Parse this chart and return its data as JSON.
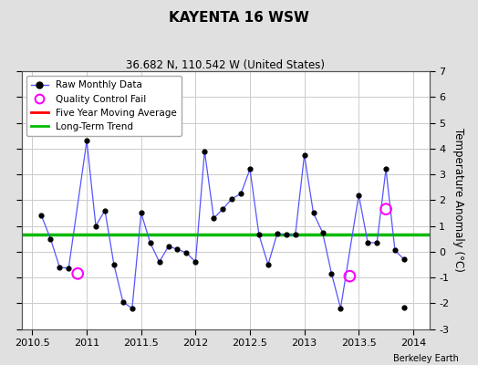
{
  "title": "KAYENTA 16 WSW",
  "subtitle": "36.682 N, 110.542 W (United States)",
  "ylabel": "Temperature Anomaly (°C)",
  "credit": "Berkeley Earth",
  "xlim": [
    2010.4,
    2014.15
  ],
  "ylim": [
    -3,
    7
  ],
  "yticks": [
    -3,
    -2,
    -1,
    0,
    1,
    2,
    3,
    4,
    5,
    6,
    7
  ],
  "xticks": [
    2010.5,
    2011.0,
    2011.5,
    2012.0,
    2012.5,
    2013.0,
    2013.5,
    2014.0
  ],
  "xticklabels": [
    "2010.5",
    "2011",
    "2011.5",
    "2012",
    "2012.5",
    "2013",
    "2013.5",
    "2014"
  ],
  "long_term_trend_y": 0.65,
  "fig_bg_color": "#e0e0e0",
  "plot_bg_color": "#ffffff",
  "line_color": "#5555ff",
  "marker_color": "#000000",
  "qc_fail_color": "#ff00ff",
  "moving_avg_color": "#ff0000",
  "trend_color": "#00bb00",
  "raw_data": [
    [
      2010.583,
      1.4
    ],
    [
      2010.667,
      0.5
    ],
    [
      2010.75,
      -0.6
    ],
    [
      2010.833,
      -0.65
    ],
    [
      2011.0,
      4.3
    ],
    [
      2011.083,
      1.0
    ],
    [
      2011.167,
      1.6
    ],
    [
      2011.25,
      -0.5
    ],
    [
      2011.333,
      -1.95
    ],
    [
      2011.417,
      -2.2
    ],
    [
      2011.5,
      1.5
    ],
    [
      2011.583,
      0.35
    ],
    [
      2011.667,
      -0.4
    ],
    [
      2011.75,
      0.2
    ],
    [
      2011.833,
      0.1
    ],
    [
      2011.917,
      -0.05
    ],
    [
      2012.0,
      -0.4
    ],
    [
      2012.083,
      3.9
    ],
    [
      2012.167,
      1.3
    ],
    [
      2012.25,
      1.65
    ],
    [
      2012.333,
      2.05
    ],
    [
      2012.417,
      2.25
    ],
    [
      2012.5,
      3.2
    ],
    [
      2012.583,
      0.65
    ],
    [
      2012.667,
      -0.5
    ],
    [
      2012.75,
      0.7
    ],
    [
      2012.833,
      0.65
    ],
    [
      2012.917,
      0.65
    ],
    [
      2013.0,
      3.75
    ],
    [
      2013.083,
      1.5
    ],
    [
      2013.167,
      0.75
    ],
    [
      2013.25,
      -0.85
    ],
    [
      2013.333,
      -2.2
    ],
    [
      2013.5,
      2.2
    ],
    [
      2013.583,
      0.35
    ],
    [
      2013.667,
      0.35
    ],
    [
      2013.75,
      3.2
    ],
    [
      2013.833,
      0.05
    ],
    [
      2013.917,
      -0.3
    ]
  ],
  "qc_fail_points": [
    [
      2010.917,
      -0.85
    ],
    [
      2013.417,
      -0.95
    ],
    [
      2013.75,
      1.65
    ]
  ],
  "disconnected_points": [
    [
      2013.917,
      -2.15
    ]
  ]
}
